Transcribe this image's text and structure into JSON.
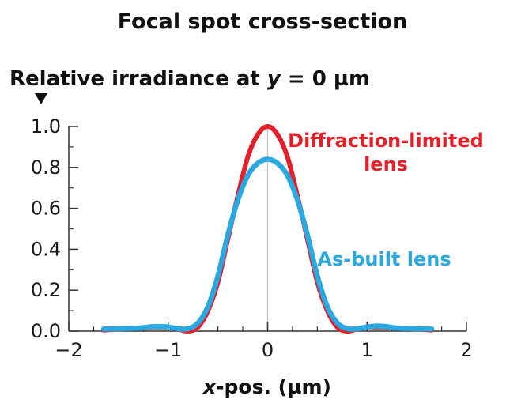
{
  "chart_data": {
    "type": "line",
    "title": "Focal spot cross-section",
    "ylabel_prefix": "Relative irradiance at ",
    "ylabel_var": "y",
    "ylabel_suffix": " = 0 µm",
    "xlabel_var": "x",
    "xlabel_suffix": "-pos. (µm)",
    "xlim": [
      -2,
      2
    ],
    "ylim": [
      0,
      1.0
    ],
    "xticks": [
      -2,
      -1,
      0,
      1,
      2
    ],
    "xtick_labels": [
      "−2",
      "−1",
      "0",
      "1",
      "2"
    ],
    "yticks": [
      0,
      0.2,
      0.4,
      0.6,
      0.8,
      1.0
    ],
    "ytick_labels": [
      "0.0",
      "0.2",
      "0.4",
      "0.6",
      "0.8",
      "1.0"
    ],
    "grid": false,
    "series": [
      {
        "name": "Diffraction-limited lens",
        "color": "#e3202a",
        "x": [
          -1.65,
          -1.5,
          -1.3,
          -1.2,
          -1.1,
          -1.0,
          -0.9,
          -0.8,
          -0.7,
          -0.6,
          -0.5,
          -0.4,
          -0.3,
          -0.2,
          -0.1,
          0.0,
          0.1,
          0.2,
          0.3,
          0.4,
          0.5,
          0.6,
          0.7,
          0.8,
          0.9,
          1.0,
          1.1,
          1.2,
          1.3,
          1.5,
          1.65
        ],
        "y": [
          0.005,
          0.01,
          0.015,
          0.02,
          0.02,
          0.02,
          0.01,
          0.0,
          0.02,
          0.1,
          0.24,
          0.45,
          0.66,
          0.85,
          0.96,
          1.0,
          0.96,
          0.85,
          0.66,
          0.45,
          0.24,
          0.1,
          0.02,
          0.0,
          0.01,
          0.02,
          0.02,
          0.02,
          0.015,
          0.01,
          0.005
        ]
      },
      {
        "name": "As-built lens",
        "color": "#2aa8df",
        "x": [
          -1.65,
          -1.5,
          -1.3,
          -1.2,
          -1.1,
          -1.0,
          -0.9,
          -0.8,
          -0.7,
          -0.6,
          -0.5,
          -0.4,
          -0.3,
          -0.2,
          -0.1,
          0.0,
          0.1,
          0.2,
          0.3,
          0.4,
          0.5,
          0.6,
          0.7,
          0.8,
          0.9,
          1.0,
          1.1,
          1.2,
          1.3,
          1.5,
          1.65
        ],
        "y": [
          0.01,
          0.012,
          0.015,
          0.02,
          0.022,
          0.02,
          0.012,
          0.012,
          0.04,
          0.12,
          0.27,
          0.47,
          0.64,
          0.76,
          0.82,
          0.84,
          0.82,
          0.76,
          0.64,
          0.47,
          0.27,
          0.12,
          0.04,
          0.012,
          0.012,
          0.02,
          0.025,
          0.022,
          0.015,
          0.012,
          0.01
        ]
      }
    ],
    "annotations": [
      {
        "lines": [
          "Diffraction-limited",
          "lens"
        ],
        "series": 0
      },
      {
        "lines": [
          "As-built lens"
        ],
        "series": 1
      }
    ]
  }
}
